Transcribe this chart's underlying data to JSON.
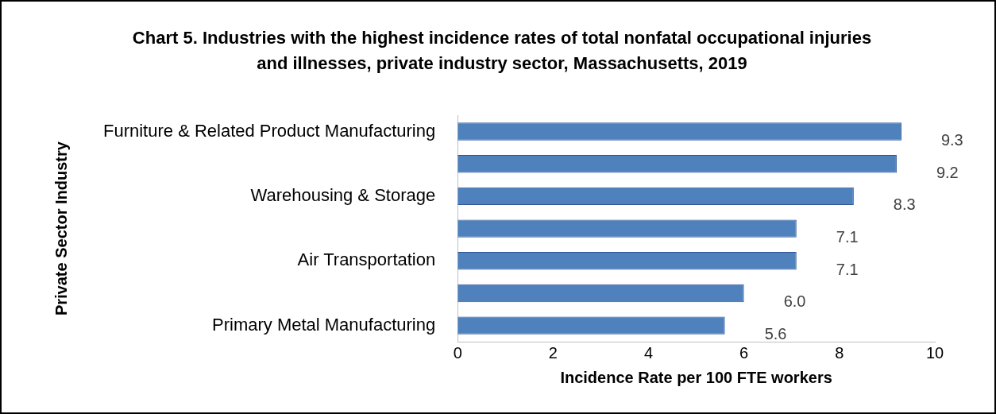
{
  "chart_data": {
    "type": "bar",
    "orientation": "horizontal",
    "title": "Chart 5.  Industries with the highest incidence rates of total nonfatal occupational injuries and illnesses, private industry sector, Massachusetts, 2019",
    "xlabel": "Incidence Rate per 100 FTE workers",
    "ylabel": "Private Sector Industry",
    "categories": [
      "Furniture & Related Product Manufacturing",
      null,
      "Warehousing & Storage",
      null,
      "Air Transportation",
      null,
      "Primary Metal Manufacturing"
    ],
    "values": [
      9.3,
      9.2,
      8.3,
      7.1,
      7.1,
      6.0,
      5.6
    ],
    "value_labels": [
      "9.3",
      "9.2",
      "8.3",
      "7.1",
      "7.1",
      "6.0",
      "5.6"
    ],
    "color": "#4f81bd",
    "xlim": [
      0,
      10
    ],
    "xticks": [
      0,
      2,
      4,
      6,
      8,
      10
    ],
    "grid": false,
    "legend": false
  }
}
